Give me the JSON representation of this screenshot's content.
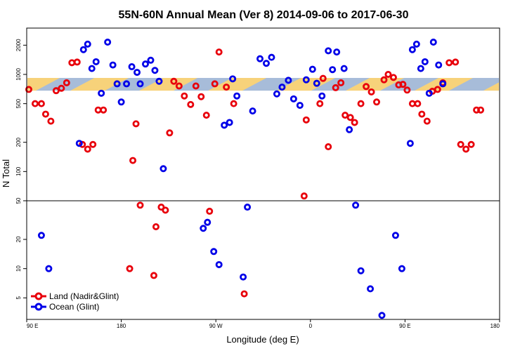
{
  "chart_data": {
    "type": "scatter",
    "title": "55N-60N Annual Mean (Ver 8)   2014-09-06 to 2017-06-30",
    "xlabel": "Longitude (deg E)",
    "ylabel": "N Total",
    "x_ticks": [
      {
        "value": 90,
        "label": "90 E"
      },
      {
        "value": 180,
        "label": "180"
      },
      {
        "value": 270,
        "label": "90 W"
      },
      {
        "value": 360,
        "label": "0"
      },
      {
        "value": 450,
        "label": "90 E"
      },
      {
        "value": 540,
        "label": "180"
      }
    ],
    "xlim": [
      90,
      540
    ],
    "y_scale": "log",
    "ylim": [
      3,
      3000
    ],
    "y_ticks": [
      5,
      10,
      20,
      50,
      100,
      200,
      500,
      1000,
      2000
    ],
    "reference_line": 50,
    "band": {
      "low": 680,
      "high": 920,
      "colors": [
        "#f7d27a",
        "#a7bcd9"
      ]
    },
    "legend_position": "bottom-left",
    "series": [
      {
        "name": "Land (Nadir&Glint)",
        "color": "#e8000b",
        "points": [
          [
            92,
            700
          ],
          [
            98,
            500
          ],
          [
            104,
            500
          ],
          [
            108,
            390
          ],
          [
            113,
            330
          ],
          [
            118,
            680
          ],
          [
            123,
            720
          ],
          [
            128,
            820
          ],
          [
            133,
            1320
          ],
          [
            138,
            1340
          ],
          [
            143,
            190
          ],
          [
            148,
            170
          ],
          [
            153,
            190
          ],
          [
            158,
            430
          ],
          [
            163,
            430
          ],
          [
            188,
            10
          ],
          [
            191,
            130
          ],
          [
            194,
            310
          ],
          [
            198,
            45
          ],
          [
            211,
            8.5
          ],
          [
            213,
            27
          ],
          [
            218,
            43
          ],
          [
            222,
            40
          ],
          [
            226,
            250
          ],
          [
            230,
            850
          ],
          [
            235,
            760
          ],
          [
            240,
            600
          ],
          [
            246,
            490
          ],
          [
            251,
            760
          ],
          [
            256,
            590
          ],
          [
            261,
            380
          ],
          [
            264,
            39
          ],
          [
            269,
            800
          ],
          [
            273,
            1700
          ],
          [
            280,
            740
          ],
          [
            287,
            500
          ],
          [
            297,
            5.5
          ],
          [
            354,
            56
          ],
          [
            356,
            340
          ],
          [
            369,
            500
          ],
          [
            372,
            910
          ],
          [
            377,
            180
          ],
          [
            384,
            730
          ],
          [
            389,
            820
          ],
          [
            393,
            380
          ],
          [
            398,
            360
          ],
          [
            402,
            320
          ],
          [
            408,
            500
          ],
          [
            413,
            750
          ],
          [
            418,
            660
          ],
          [
            423,
            520
          ],
          [
            430,
            880
          ],
          [
            434,
            1000
          ],
          [
            439,
            930
          ],
          [
            444,
            780
          ],
          [
            448,
            790
          ],
          [
            452,
            690
          ],
          [
            457,
            500
          ],
          [
            462,
            500
          ],
          [
            466,
            390
          ],
          [
            471,
            330
          ],
          [
            476,
            670
          ],
          [
            481,
            700
          ],
          [
            486,
            820
          ],
          [
            492,
            1320
          ],
          [
            498,
            1340
          ],
          [
            503,
            190
          ],
          [
            508,
            170
          ],
          [
            513,
            190
          ],
          [
            518,
            430
          ],
          [
            522,
            430
          ]
        ]
      },
      {
        "name": "Ocean (Glint)",
        "color": "#0000e8",
        "points": [
          [
            104,
            22
          ],
          [
            111,
            10
          ],
          [
            140,
            195
          ],
          [
            144,
            1800
          ],
          [
            148,
            2050
          ],
          [
            152,
            1150
          ],
          [
            156,
            1350
          ],
          [
            161,
            640
          ],
          [
            167,
            2150
          ],
          [
            172,
            1250
          ],
          [
            176,
            800
          ],
          [
            180,
            520
          ],
          [
            185,
            800
          ],
          [
            190,
            1200
          ],
          [
            195,
            1050
          ],
          [
            198,
            800
          ],
          [
            203,
            1280
          ],
          [
            208,
            1400
          ],
          [
            212,
            1100
          ],
          [
            216,
            850
          ],
          [
            220,
            107
          ],
          [
            258,
            26
          ],
          [
            262,
            30
          ],
          [
            268,
            15
          ],
          [
            273,
            11
          ],
          [
            278,
            300
          ],
          [
            283,
            320
          ],
          [
            286,
            900
          ],
          [
            290,
            600
          ],
          [
            296,
            8.2
          ],
          [
            300,
            43
          ],
          [
            305,
            420
          ],
          [
            312,
            1450
          ],
          [
            318,
            1300
          ],
          [
            323,
            1500
          ],
          [
            328,
            630
          ],
          [
            333,
            740
          ],
          [
            339,
            870
          ],
          [
            344,
            560
          ],
          [
            350,
            480
          ],
          [
            356,
            880
          ],
          [
            362,
            1130
          ],
          [
            366,
            810
          ],
          [
            371,
            600
          ],
          [
            377,
            1750
          ],
          [
            381,
            1120
          ],
          [
            385,
            1700
          ],
          [
            392,
            1150
          ],
          [
            397,
            270
          ],
          [
            403,
            45
          ],
          [
            408,
            9.5
          ],
          [
            417,
            6.2
          ],
          [
            428,
            3.3
          ],
          [
            441,
            22
          ],
          [
            447,
            10
          ],
          [
            455,
            195
          ],
          [
            457,
            1800
          ],
          [
            461,
            2050
          ],
          [
            465,
            1150
          ],
          [
            469,
            1350
          ],
          [
            473,
            640
          ],
          [
            477,
            2150
          ],
          [
            482,
            1250
          ],
          [
            486,
            800
          ]
        ]
      }
    ]
  }
}
